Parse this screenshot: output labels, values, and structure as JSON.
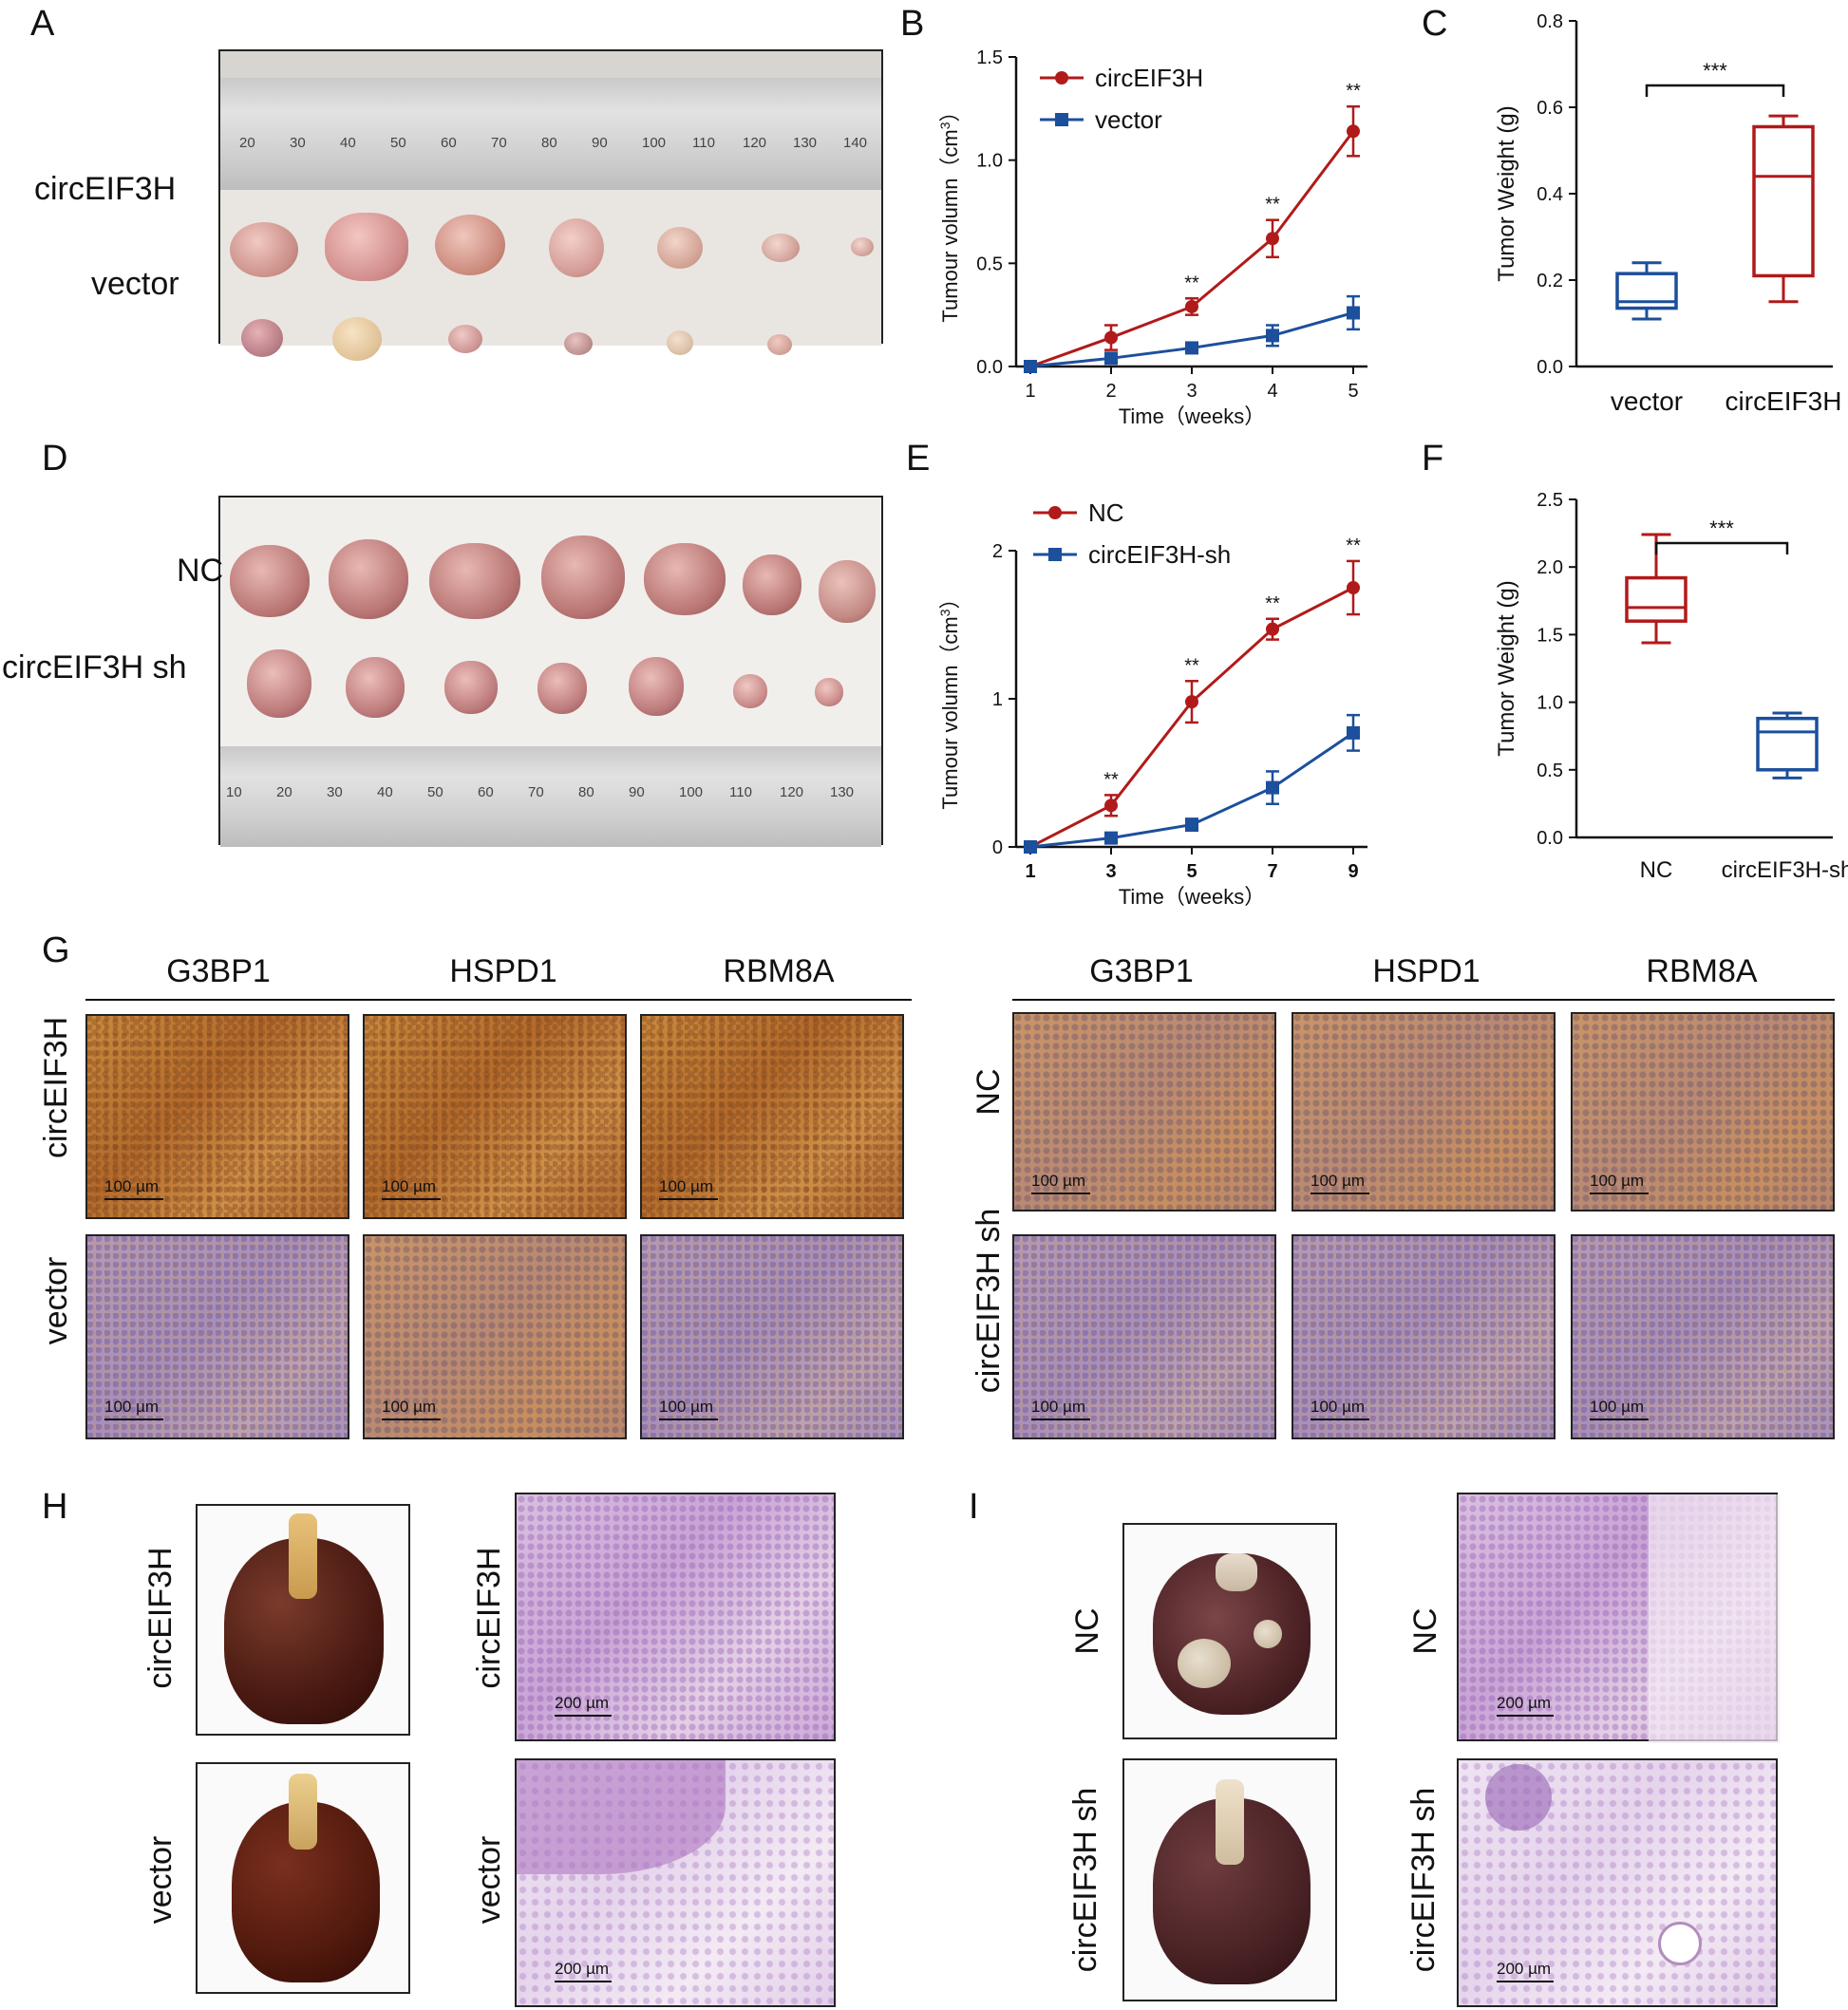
{
  "panels": {
    "A": {
      "letter": "A",
      "rows": [
        "circEIF3H",
        "vector"
      ],
      "ruler_top": [
        "20",
        "30",
        "40",
        "50",
        "60",
        "70",
        "80",
        "90",
        "100",
        "110",
        "120",
        "130",
        "140"
      ]
    },
    "B": {
      "letter": "B"
    },
    "C": {
      "letter": "C"
    },
    "D": {
      "letter": "D",
      "rows": [
        "NC",
        "circEIF3H sh"
      ],
      "ruler_bottom": [
        "10",
        "20",
        "30",
        "40",
        "50",
        "60",
        "70",
        "80",
        "90",
        "100",
        "110",
        "120",
        "130"
      ]
    },
    "E": {
      "letter": "E"
    },
    "F": {
      "letter": "F"
    },
    "G": {
      "letter": "G",
      "columns": [
        "G3BP1",
        "HSPD1",
        "RBM8A"
      ],
      "left_rows": [
        "circEIF3H",
        "vector"
      ],
      "right_rows": [
        "NC",
        "circEIF3H sh"
      ],
      "scale": "100 µm"
    },
    "H": {
      "letter": "H",
      "rows": [
        "circEIF3H",
        "vector"
      ],
      "scale": "200 µm"
    },
    "I": {
      "letter": "I",
      "rows": [
        "NC",
        "circEIF3H sh"
      ],
      "scale": "200 µm"
    }
  },
  "chart_data": [
    {
      "id": "B",
      "type": "line",
      "x": [
        1,
        2,
        3,
        4,
        5
      ],
      "series": [
        {
          "name": "circEIF3H",
          "color": "#b11a1a",
          "values": [
            0.0,
            0.14,
            0.29,
            0.62,
            1.14
          ],
          "errors": [
            0.01,
            0.06,
            0.04,
            0.09,
            0.12
          ]
        },
        {
          "name": "vector",
          "color": "#1c4f9c",
          "values": [
            0.0,
            0.04,
            0.09,
            0.15,
            0.26
          ],
          "errors": [
            0.01,
            0.02,
            0.02,
            0.05,
            0.08
          ]
        }
      ],
      "ylim": [
        0.0,
        1.5
      ],
      "yticks": [
        "0.0",
        "0.5",
        "1.0",
        "1.5"
      ],
      "xticks": [
        "1",
        "2",
        "3",
        "4",
        "5"
      ],
      "xlabel": "Time（weeks）",
      "ylabel": "Tumour volumn（cm3）",
      "annotations": [
        "**",
        "**",
        "**"
      ],
      "legend": "top-left"
    },
    {
      "id": "C",
      "type": "box",
      "categories": [
        "vector",
        "circEIF3H"
      ],
      "boxes": [
        {
          "name": "vector",
          "color": "#1c4f9c",
          "min": 0.11,
          "q1": 0.135,
          "median": 0.15,
          "q3": 0.215,
          "max": 0.24
        },
        {
          "name": "circEIF3H",
          "color": "#b11a1a",
          "min": 0.15,
          "q1": 0.21,
          "median": 0.44,
          "q3": 0.555,
          "max": 0.58
        }
      ],
      "ylim": [
        0.0,
        0.8
      ],
      "yticks": [
        "0.0",
        "0.2",
        "0.4",
        "0.6",
        "0.8"
      ],
      "ylabel": "Tumor Weight (g)",
      "annotation": "***"
    },
    {
      "id": "E",
      "type": "line",
      "x": [
        1,
        3,
        5,
        7,
        9
      ],
      "series": [
        {
          "name": "NC",
          "color": "#b11a1a",
          "values": [
            0.0,
            0.28,
            0.98,
            1.47,
            1.75
          ],
          "errors": [
            0.01,
            0.07,
            0.14,
            0.07,
            0.18
          ]
        },
        {
          "name": "circEIF3H-sh",
          "color": "#1c4f9c",
          "values": [
            0.0,
            0.06,
            0.15,
            0.4,
            0.77
          ],
          "errors": [
            0.01,
            0.02,
            0.04,
            0.11,
            0.12
          ]
        }
      ],
      "ylim": [
        0,
        2.0
      ],
      "yticks": [
        "0",
        "1",
        "2"
      ],
      "xticks": [
        "1",
        "3",
        "5",
        "7",
        "9"
      ],
      "xlabel": "Time（weeks）",
      "ylabel": "Tumour volumn（cm3）",
      "annotations": [
        "**",
        "**",
        "**",
        "**"
      ],
      "legend": "top-left"
    },
    {
      "id": "F",
      "type": "box",
      "categories": [
        "NC",
        "circEIF3H-sh"
      ],
      "boxes": [
        {
          "name": "NC",
          "color": "#b11a1a",
          "min": 1.44,
          "q1": 1.6,
          "median": 1.7,
          "q3": 1.92,
          "max": 2.24
        },
        {
          "name": "circEIF3H-sh",
          "color": "#1c4f9c",
          "min": 0.44,
          "q1": 0.5,
          "median": 0.78,
          "q3": 0.88,
          "max": 0.92
        }
      ],
      "ylim": [
        0.0,
        2.5
      ],
      "yticks": [
        "0.0",
        "0.5",
        "1.0",
        "1.5",
        "2.0",
        "2.5"
      ],
      "ylabel": "Tumor Weight (g)",
      "annotation": "***"
    }
  ]
}
